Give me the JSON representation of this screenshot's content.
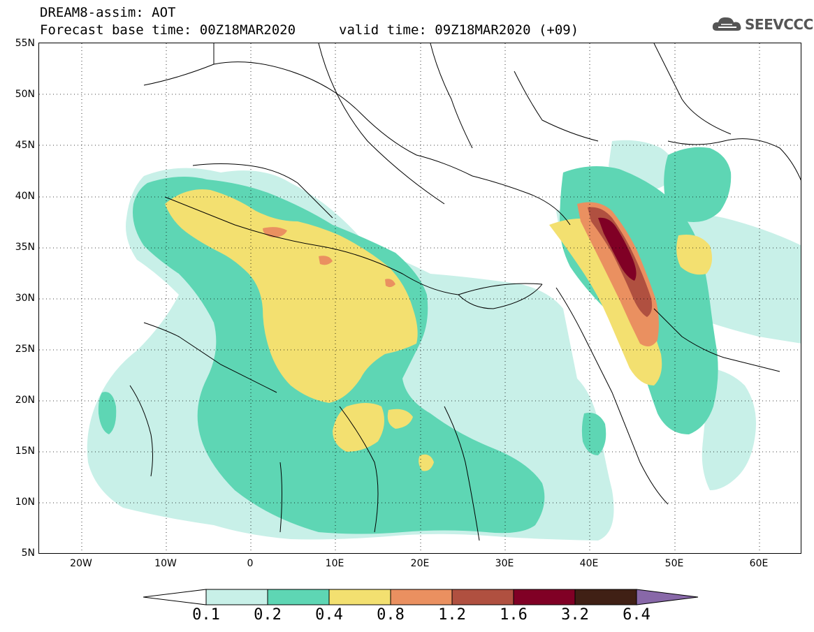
{
  "header": {
    "title_line1": "DREAM8-assim: AOT",
    "title_line2": "Forecast base time: 00Z18MAR2020",
    "valid_time": "valid time: 09Z18MAR2020 (+09)"
  },
  "logo": {
    "text": "SEEVCCC",
    "icon": "cloud-icon",
    "color": "#555555"
  },
  "map": {
    "lat_labels": [
      "55N",
      "50N",
      "45N",
      "40N",
      "35N",
      "30N",
      "25N",
      "20N",
      "15N",
      "10N",
      "5N"
    ],
    "lon_labels": [
      "20W",
      "10W",
      "0",
      "10E",
      "20E",
      "30E",
      "40E",
      "50E",
      "60E"
    ],
    "lat_range": [
      5,
      55
    ],
    "lon_range": [
      -25,
      65
    ],
    "gridlines": "dotted"
  },
  "colorbar": {
    "levels": [
      "0.1",
      "0.2",
      "0.4",
      "0.8",
      "1.2",
      "1.6",
      "3.2",
      "6.4"
    ],
    "colors": [
      "#c8f0e8",
      "#5ed6b4",
      "#f3e070",
      "#ea9060",
      "#b05040",
      "#800025",
      "#402015",
      "#8868a8"
    ],
    "under_color": "#ffffff"
  },
  "field_colors": {
    "c1": "#c8f0e8",
    "c2": "#5ed6b4",
    "c3": "#f3e070",
    "c4": "#ea9060",
    "c5": "#b05040",
    "c6": "#800025"
  }
}
